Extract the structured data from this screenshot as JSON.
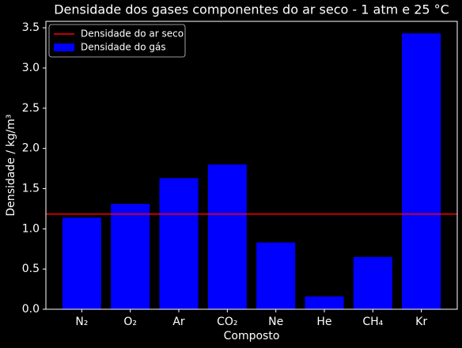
{
  "chart_data": {
    "type": "bar",
    "title": "Densidade dos gases componentes do ar seco - 1 atm e 25 °C",
    "x_label": "Composto",
    "y_label": "Densidade / kg/m³",
    "categories": [
      "N₂",
      "O₂",
      "Ar",
      "CO₂",
      "Ne",
      "He",
      "CH₄",
      "Kr"
    ],
    "series": [
      {
        "name": "Densidade do gás",
        "color": "#0000ff",
        "values": [
          1.14,
          1.31,
          1.63,
          1.8,
          0.83,
          0.16,
          0.65,
          3.43
        ]
      }
    ],
    "reference_line": {
      "name": "Densidade do ar seco",
      "color": "#ff0000",
      "value": 1.184
    },
    "ylim": [
      0,
      3.58
    ],
    "yticks": [
      {
        "value": 0,
        "label": "0.0"
      },
      0.5,
      {
        "value": 1,
        "label": "1.0"
      },
      1.5,
      {
        "value": 2,
        "label": "2.0"
      },
      2.5,
      {
        "value": 3,
        "label": "3.0"
      },
      3.5
    ],
    "legend": "upper left",
    "background": "#000000"
  }
}
